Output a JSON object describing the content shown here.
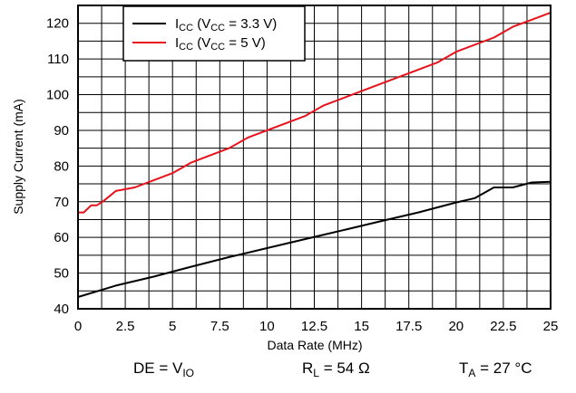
{
  "chart_data": {
    "type": "line",
    "title": "",
    "xlabel": "Data Rate (MHz)",
    "ylabel": "Supply Current (mA)",
    "xlim": [
      0,
      25
    ],
    "ylim": [
      40,
      125
    ],
    "grid": true,
    "legend_position": "top-left",
    "x_ticks": [
      "0",
      "2.5",
      "5",
      "7.5",
      "10",
      "12.5",
      "15",
      "17.5",
      "20",
      "22.5",
      "25"
    ],
    "y_ticks": [
      "40",
      "50",
      "60",
      "70",
      "80",
      "90",
      "100",
      "110",
      "120"
    ],
    "series": [
      {
        "name": "ICC (VCC = 3.3 V)",
        "label_main": "I",
        "label_sub": "CC",
        "label_open": " (V",
        "label_sub2": "CC",
        "label_close": " = 3.3 V)",
        "color": "#000000",
        "x": [
          0,
          2,
          4,
          6,
          8,
          10,
          12,
          14,
          16,
          18,
          20,
          21,
          22,
          23,
          24,
          25
        ],
        "y": [
          43.3,
          46.5,
          49,
          51.8,
          54.5,
          57,
          59.5,
          62,
          64.5,
          67,
          69.8,
          71,
          74,
          74,
          75.4,
          75.6
        ]
      },
      {
        "name": "ICC (VCC = 5 V)",
        "label_main": "I",
        "label_sub": "CC",
        "label_open": " (V",
        "label_sub2": "CC",
        "label_close": " = 5 V)",
        "color": "#e8121b",
        "x": [
          0,
          0.3,
          0.7,
          1,
          1.3,
          2,
          3,
          4,
          5,
          6,
          8,
          9,
          10,
          11,
          12,
          13,
          15,
          17,
          19,
          20,
          22,
          23,
          24,
          25
        ],
        "y": [
          67,
          67,
          69,
          69,
          70,
          73,
          74,
          76,
          78,
          81,
          85,
          88,
          90,
          92,
          94,
          97,
          101,
          105,
          109,
          112,
          116,
          119,
          121,
          123
        ]
      }
    ]
  },
  "conditions": {
    "de_main": "DE = V",
    "de_sub": "IO",
    "rl_main": "R",
    "rl_sub": "L",
    "rl_rest": " = 54 Ω",
    "ta_main": "T",
    "ta_sub": "A",
    "ta_rest": " = 27 °C"
  }
}
